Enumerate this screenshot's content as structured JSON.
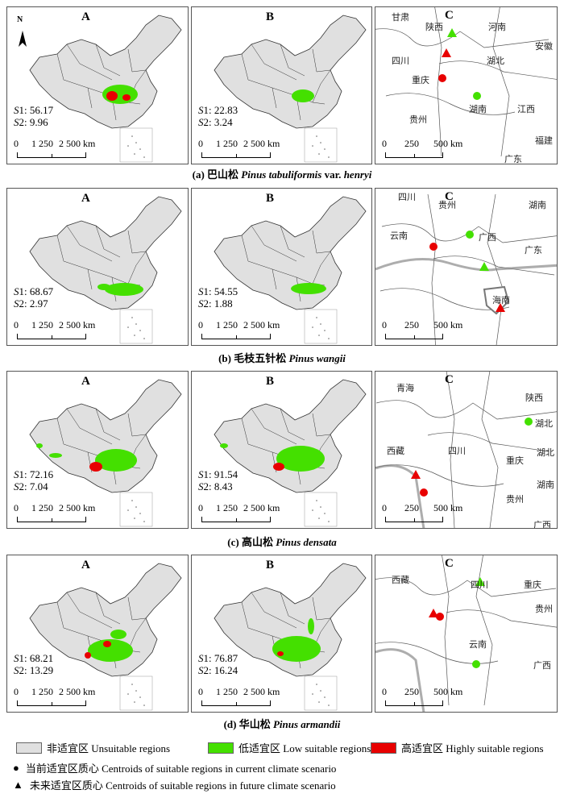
{
  "panel_labels": {
    "a": "A",
    "b": "B",
    "c": "C"
  },
  "scale": {
    "left": {
      "zero": "0",
      "mid": "1 250",
      "end": "2 500 km"
    },
    "right": {
      "zero": "0",
      "mid": "250",
      "end": "500 km"
    }
  },
  "north": "N",
  "stat_labels": {
    "s1": "S",
    "s1n": "1: ",
    "s2": "S",
    "s2n": "2: "
  },
  "colors": {
    "unsuitable": "#e0e0e0",
    "low": "#44e000",
    "high": "#e80000",
    "border": "#333333"
  },
  "rows": [
    {
      "caption_prefix": "(a)  巴山松 ",
      "caption_latin": "Pinus tabuliformis",
      "caption_suffix": " var. ",
      "caption_latin2": "henryi",
      "A": {
        "s1": "56.17",
        "s2": "9.96"
      },
      "B": {
        "s1": "22.83",
        "s2": "3.24"
      },
      "C_labels": [
        "甘肃",
        "陕西",
        "河南",
        "安徽",
        "四川",
        "湖北",
        "重庆",
        "湖南",
        "江西",
        "贵州",
        "福建",
        "广东"
      ]
    },
    {
      "caption_prefix": "(b)  毛枝五针松 ",
      "caption_latin": "Pinus wangii",
      "caption_suffix": "",
      "caption_latin2": "",
      "A": {
        "s1": "68.67",
        "s2": "2.97"
      },
      "B": {
        "s1": "54.55",
        "s2": "1.88"
      },
      "C_labels": [
        "四川",
        "贵州",
        "湖南",
        "云南",
        "广西",
        "广东",
        "海南"
      ]
    },
    {
      "caption_prefix": "(c)  高山松  ",
      "caption_latin": "Pinus densata",
      "caption_suffix": "",
      "caption_latin2": "",
      "A": {
        "s1": "72.16",
        "s2": "7.04"
      },
      "B": {
        "s1": "91.54",
        "s2": "8.43"
      },
      "C_labels": [
        "青海",
        "陕西",
        "湖北",
        "西藏",
        "四川",
        "重庆",
        "湖北",
        "湖南",
        "贵州",
        "广西"
      ]
    },
    {
      "caption_prefix": "(d)  华山松 ",
      "caption_latin": "Pinus armandii",
      "caption_suffix": "",
      "caption_latin2": "",
      "A": {
        "s1": "68.21",
        "s2": "13.29"
      },
      "B": {
        "s1": "76.87",
        "s2": "16.24"
      },
      "C_labels": [
        "西藏",
        "四川",
        "重庆",
        "贵州",
        "云南",
        "广西"
      ]
    }
  ],
  "legend": {
    "unsuitable": "非适宜区 Unsuitable regions",
    "low": "低适宜区 Low suitable regions",
    "high": "高适宜区 Highly suitable regions",
    "current": "当前适宜区质心  Centroids of suitable regions in current climate scenario",
    "future": "未来适宜区质心  Centroids of suitable regions in  future climate scenario",
    "circle_symbol": "●",
    "triangle_symbol": "▲"
  }
}
